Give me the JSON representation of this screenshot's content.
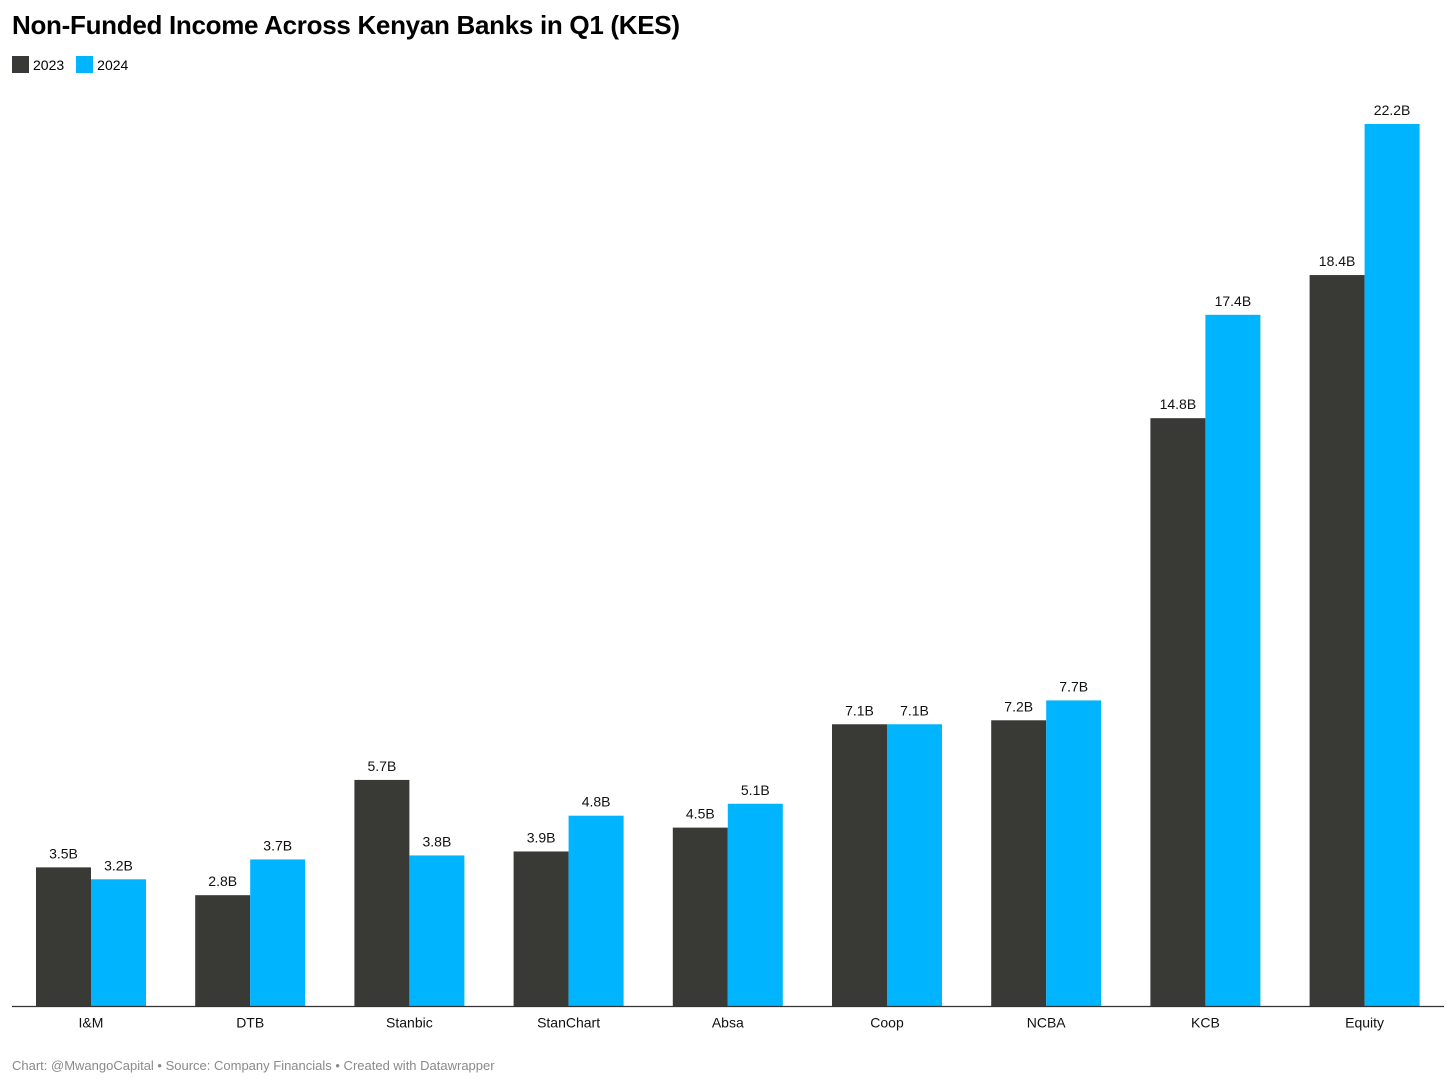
{
  "chart_data": {
    "type": "bar",
    "title": "Non-Funded Income Across Kenyan Banks in Q1 (KES)",
    "categories": [
      "I&M",
      "DTB",
      "Stanbic",
      "StanChart",
      "Absa",
      "Coop",
      "NCBA",
      "KCB",
      "Equity"
    ],
    "series": [
      {
        "name": "2023",
        "color": "#393a35",
        "values": [
          3.5,
          2.8,
          5.7,
          3.9,
          4.5,
          7.1,
          7.2,
          14.8,
          18.4
        ],
        "labels": [
          "3.5B",
          "2.8B",
          "5.7B",
          "3.9B",
          "4.5B",
          "7.1B",
          "7.2B",
          "14.8B",
          "18.4B"
        ]
      },
      {
        "name": "2024",
        "color": "#00b4fd",
        "values": [
          3.2,
          3.7,
          3.8,
          4.8,
          5.1,
          7.1,
          7.7,
          17.4,
          22.2
        ],
        "labels": [
          "3.2B",
          "3.7B",
          "3.8B",
          "4.8B",
          "5.1B",
          "7.1B",
          "7.7B",
          "17.4B",
          "22.2B"
        ]
      }
    ],
    "ylim": [
      0,
      22.2
    ],
    "grid": false,
    "legend_position": "top-left"
  },
  "footer": {
    "text": "Chart: @MwangoCapital • Source: Company Financials • Created with Datawrapper"
  }
}
